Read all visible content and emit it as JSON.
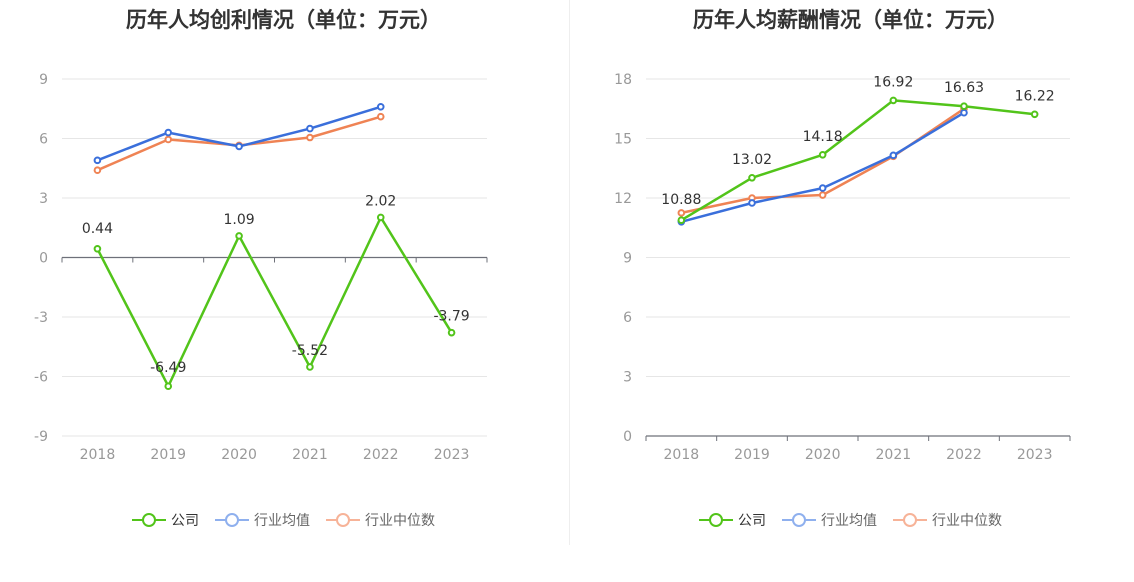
{
  "chart_data": [
    {
      "type": "line",
      "title": "历年人均创利情况（单位：万元）",
      "categories": [
        "2018",
        "2019",
        "2020",
        "2021",
        "2022",
        "2023"
      ],
      "ylim": [
        -9,
        9
      ],
      "yticks": [
        9,
        6,
        3,
        0,
        -3,
        -6,
        -9
      ],
      "yticks_labels": [
        "9",
        "6",
        "3",
        "0",
        "-3",
        "-6",
        "-9"
      ],
      "series": [
        {
          "name": "公司",
          "color": "#52c41a",
          "values": [
            0.44,
            -6.49,
            1.09,
            -5.52,
            2.02,
            -3.79
          ],
          "labels": [
            "0.44",
            "-6.49",
            "1.09",
            "-5.52",
            "2.02",
            "-3.79"
          ]
        },
        {
          "name": "行业均值",
          "color": "#3a6fdb",
          "values": [
            4.9,
            6.3,
            5.6,
            6.5,
            7.6,
            null
          ]
        },
        {
          "name": "行业中位数",
          "color": "#ef8354",
          "values": [
            4.4,
            5.95,
            5.65,
            6.05,
            7.1,
            null
          ]
        }
      ],
      "grid": true,
      "legend": "bottom"
    },
    {
      "type": "line",
      "title": "历年人均薪酬情况（单位：万元）",
      "categories": [
        "2018",
        "2019",
        "2020",
        "2021",
        "2022",
        "2023"
      ],
      "ylim": [
        0,
        18
      ],
      "yticks": [
        18,
        15,
        12,
        9,
        6,
        3,
        0
      ],
      "yticks_labels": [
        "18",
        "15",
        "12",
        "9",
        "6",
        "3",
        "0"
      ],
      "series": [
        {
          "name": "公司",
          "color": "#52c41a",
          "values": [
            10.88,
            13.02,
            14.18,
            16.92,
            16.63,
            16.22
          ],
          "labels": [
            "10.88",
            "13.02",
            "14.18",
            "16.92",
            "16.63",
            "16.22"
          ]
        },
        {
          "name": "行业均值",
          "color": "#3a6fdb",
          "values": [
            10.8,
            11.75,
            12.5,
            14.15,
            16.3,
            null
          ]
        },
        {
          "name": "行业中位数",
          "color": "#ef8354",
          "values": [
            11.25,
            12.0,
            12.15,
            14.1,
            16.5,
            null
          ]
        }
      ],
      "grid": true,
      "legend": "bottom"
    }
  ],
  "legend_items": [
    {
      "label": "公司",
      "color": "#52c41a"
    },
    {
      "label": "行业均值",
      "color": "#8fb0ee"
    },
    {
      "label": "行业中位数",
      "color": "#f7b398"
    }
  ]
}
